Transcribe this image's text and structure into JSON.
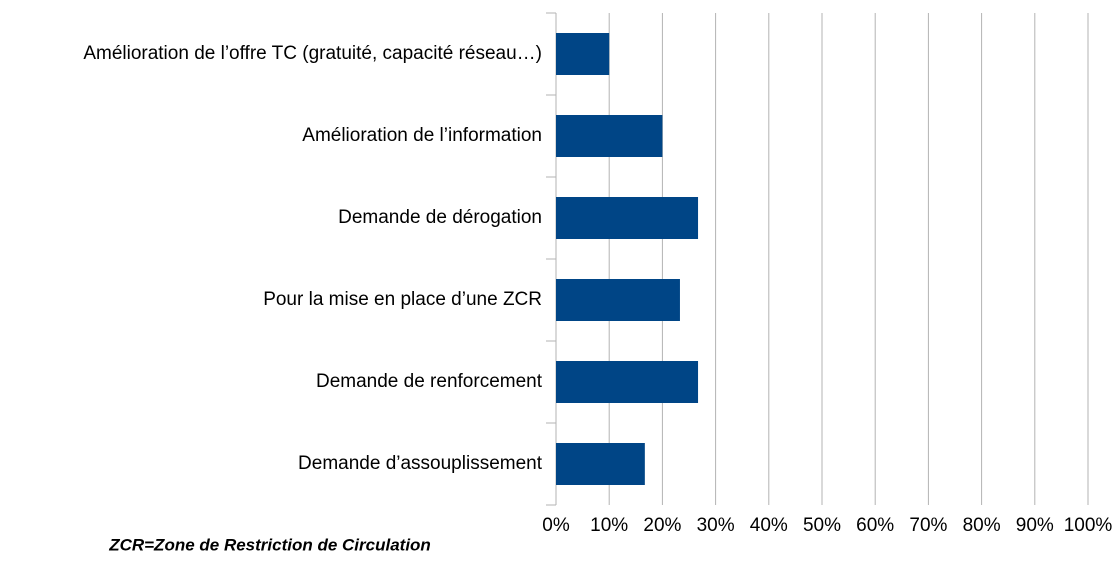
{
  "chart_data": {
    "type": "bar",
    "orientation": "horizontal",
    "categories": [
      "Amélioration de l’offre TC (gratuité, capacité réseau…)",
      "Amélioration de l’information",
      "Demande de dérogation",
      "Pour la mise en place d’une ZCR",
      "Demande de renforcement",
      "Demande d’assouplissement"
    ],
    "values": [
      10,
      20,
      26.7,
      23.3,
      26.7,
      16.7
    ],
    "color": "#004586",
    "xlim": [
      0,
      100
    ],
    "xticks": [
      {
        "value": 0,
        "label": "0%"
      },
      {
        "value": 10,
        "label": "10%"
      },
      {
        "value": 20,
        "label": "20%"
      },
      {
        "value": 30,
        "label": "30%"
      },
      {
        "value": 40,
        "label": "40%"
      },
      {
        "value": 50,
        "label": "50%"
      },
      {
        "value": 60,
        "label": "60%"
      },
      {
        "value": 70,
        "label": "70%"
      },
      {
        "value": 80,
        "label": "80%"
      },
      {
        "value": 90,
        "label": "90%"
      },
      {
        "value": 100,
        "label": "100%"
      }
    ],
    "grid": true,
    "annotation": "ZCR=Zone de Restriction de Circulation"
  }
}
